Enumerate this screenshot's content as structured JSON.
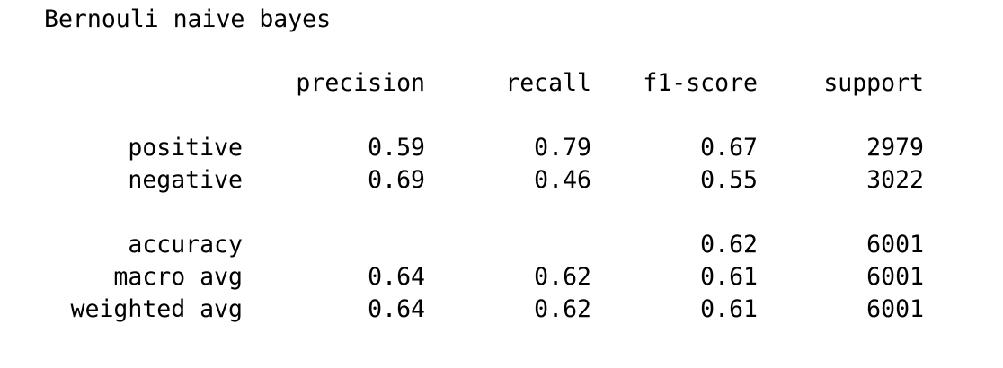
{
  "report": {
    "title": "Bernouli naive bayes",
    "headers": {
      "precision": "precision",
      "recall": "recall",
      "f1": "f1-score",
      "support": "support"
    },
    "rows": {
      "positive": {
        "label": "positive",
        "precision": "0.59",
        "recall": "0.79",
        "f1": "0.67",
        "support": "2979"
      },
      "negative": {
        "label": "negative",
        "precision": "0.69",
        "recall": "0.46",
        "f1": "0.55",
        "support": "3022"
      },
      "accuracy": {
        "label": "accuracy",
        "f1": "0.62",
        "support": "6001"
      },
      "macro_avg": {
        "label": "macro avg",
        "precision": "0.64",
        "recall": "0.62",
        "f1": "0.61",
        "support": "6001"
      },
      "weighted_avg": {
        "label": "weighted avg",
        "precision": "0.64",
        "recall": "0.62",
        "f1": "0.61",
        "support": "6001"
      }
    }
  }
}
